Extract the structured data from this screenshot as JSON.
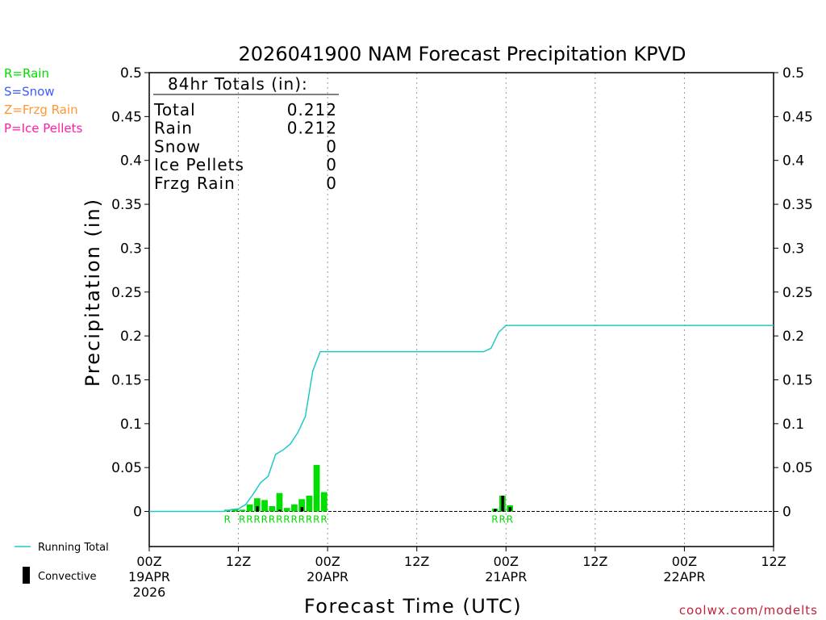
{
  "chart_data": {
    "type": "bar",
    "title": "2026041900 NAM Forecast Precipitation KPVD",
    "xlabel": "Forecast Time (UTC)",
    "ylabel": "Precipitation (in)",
    "ylim": [
      -0.04,
      0.5
    ],
    "xlim_hours": [
      0,
      84
    ],
    "y_ticks": [
      "0",
      "0.05",
      "0.1",
      "0.15",
      "0.2",
      "0.25",
      "0.3",
      "0.35",
      "0.4",
      "0.45",
      "0.5"
    ],
    "y_tick_values": [
      0,
      0.05,
      0.1,
      0.15,
      0.2,
      0.25,
      0.3,
      0.35,
      0.4,
      0.45,
      0.5
    ],
    "x_ticks": [
      {
        "hour": 0,
        "label": "00Z",
        "date": "19APR",
        "year": "2026"
      },
      {
        "hour": 12,
        "label": "12Z",
        "date": "",
        "year": ""
      },
      {
        "hour": 24,
        "label": "00Z",
        "date": "20APR",
        "year": ""
      },
      {
        "hour": 36,
        "label": "12Z",
        "date": "",
        "year": ""
      },
      {
        "hour": 48,
        "label": "00Z",
        "date": "21APR",
        "year": ""
      },
      {
        "hour": 60,
        "label": "12Z",
        "date": "",
        "year": ""
      },
      {
        "hour": 72,
        "label": "00Z",
        "date": "22APR",
        "year": ""
      },
      {
        "hour": 84,
        "label": "12Z",
        "date": "",
        "year": ""
      }
    ],
    "precip_bars": [
      {
        "hour": 10,
        "total": 0.002,
        "convective": 0
      },
      {
        "hour": 11,
        "total": 0.003,
        "convective": 0
      },
      {
        "hour": 12,
        "total": 0.002,
        "convective": 0
      },
      {
        "hour": 13,
        "total": 0.008,
        "convective": 0
      },
      {
        "hour": 14,
        "total": 0.015,
        "convective": 0.006
      },
      {
        "hour": 15,
        "total": 0.013,
        "convective": 0
      },
      {
        "hour": 16,
        "total": 0.006,
        "convective": 0
      },
      {
        "hour": 17,
        "total": 0.021,
        "convective": 0.002
      },
      {
        "hour": 18,
        "total": 0.004,
        "convective": 0
      },
      {
        "hour": 19,
        "total": 0.008,
        "convective": 0
      },
      {
        "hour": 20,
        "total": 0.014,
        "convective": 0.005
      },
      {
        "hour": 21,
        "total": 0.018,
        "convective": 0
      },
      {
        "hour": 22,
        "total": 0.053,
        "convective": 0
      },
      {
        "hour": 23,
        "total": 0.022,
        "convective": 0
      },
      {
        "hour": 46,
        "total": 0.003,
        "convective": 0.003
      },
      {
        "hour": 47,
        "total": 0.018,
        "convective": 0.018
      },
      {
        "hour": 48,
        "total": 0.007,
        "convective": 0.005
      }
    ],
    "running_total": [
      [
        0,
        0
      ],
      [
        10,
        0
      ],
      [
        11,
        0.002
      ],
      [
        12,
        0.003
      ],
      [
        13,
        0.008
      ],
      [
        14,
        0.02
      ],
      [
        15,
        0.033
      ],
      [
        16,
        0.04
      ],
      [
        17,
        0.065
      ],
      [
        18,
        0.07
      ],
      [
        19,
        0.077
      ],
      [
        20,
        0.09
      ],
      [
        21,
        0.108
      ],
      [
        22,
        0.16
      ],
      [
        23,
        0.182
      ],
      [
        24,
        0.182
      ],
      [
        45,
        0.182
      ],
      [
        46,
        0.186
      ],
      [
        47,
        0.204
      ],
      [
        48,
        0.212
      ],
      [
        84,
        0.212
      ]
    ],
    "precip_type_labels": [
      {
        "hour": 10,
        "type": "R"
      },
      {
        "hour": 12,
        "type": "R"
      },
      {
        "hour": 13,
        "type": "R"
      },
      {
        "hour": 14,
        "type": "R"
      },
      {
        "hour": 15,
        "type": "R"
      },
      {
        "hour": 16,
        "type": "R"
      },
      {
        "hour": 17,
        "type": "R"
      },
      {
        "hour": 18,
        "type": "R"
      },
      {
        "hour": 19,
        "type": "R"
      },
      {
        "hour": 20,
        "type": "R"
      },
      {
        "hour": 21,
        "type": "R"
      },
      {
        "hour": 22,
        "type": "R"
      },
      {
        "hour": 23,
        "type": "R"
      },
      {
        "hour": 46,
        "type": "R"
      },
      {
        "hour": 47,
        "type": "R"
      },
      {
        "hour": 48,
        "type": "R"
      }
    ],
    "totals_box": {
      "heading": "84hr Totals (in):",
      "rows": [
        {
          "label": "Total",
          "value": "0.212"
        },
        {
          "label": "Rain",
          "value": "0.212"
        },
        {
          "label": "Snow",
          "value": "0"
        },
        {
          "label": "Ice Pellets",
          "value": "0"
        },
        {
          "label": "Frzg Rain",
          "value": "0"
        }
      ]
    },
    "type_legend": [
      {
        "label": "R=Rain",
        "color": "#00dd00"
      },
      {
        "label": "S=Snow",
        "color": "#3c5cff"
      },
      {
        "label": "Z=Frzg Rain",
        "color": "#ff9633"
      },
      {
        "label": "P=Ice Pellets",
        "color": "#ff1ca6"
      }
    ],
    "series_legend": [
      {
        "label": "Running Total",
        "color": "#22c8c8",
        "kind": "line"
      },
      {
        "label": "Convective",
        "color": "#000000",
        "kind": "bar"
      }
    ],
    "colors": {
      "bar": "#00dd00",
      "convective": "#000000",
      "running_total": "#22c8c8",
      "grid": "#999999"
    },
    "credit": "coolwx.com/modelts"
  }
}
